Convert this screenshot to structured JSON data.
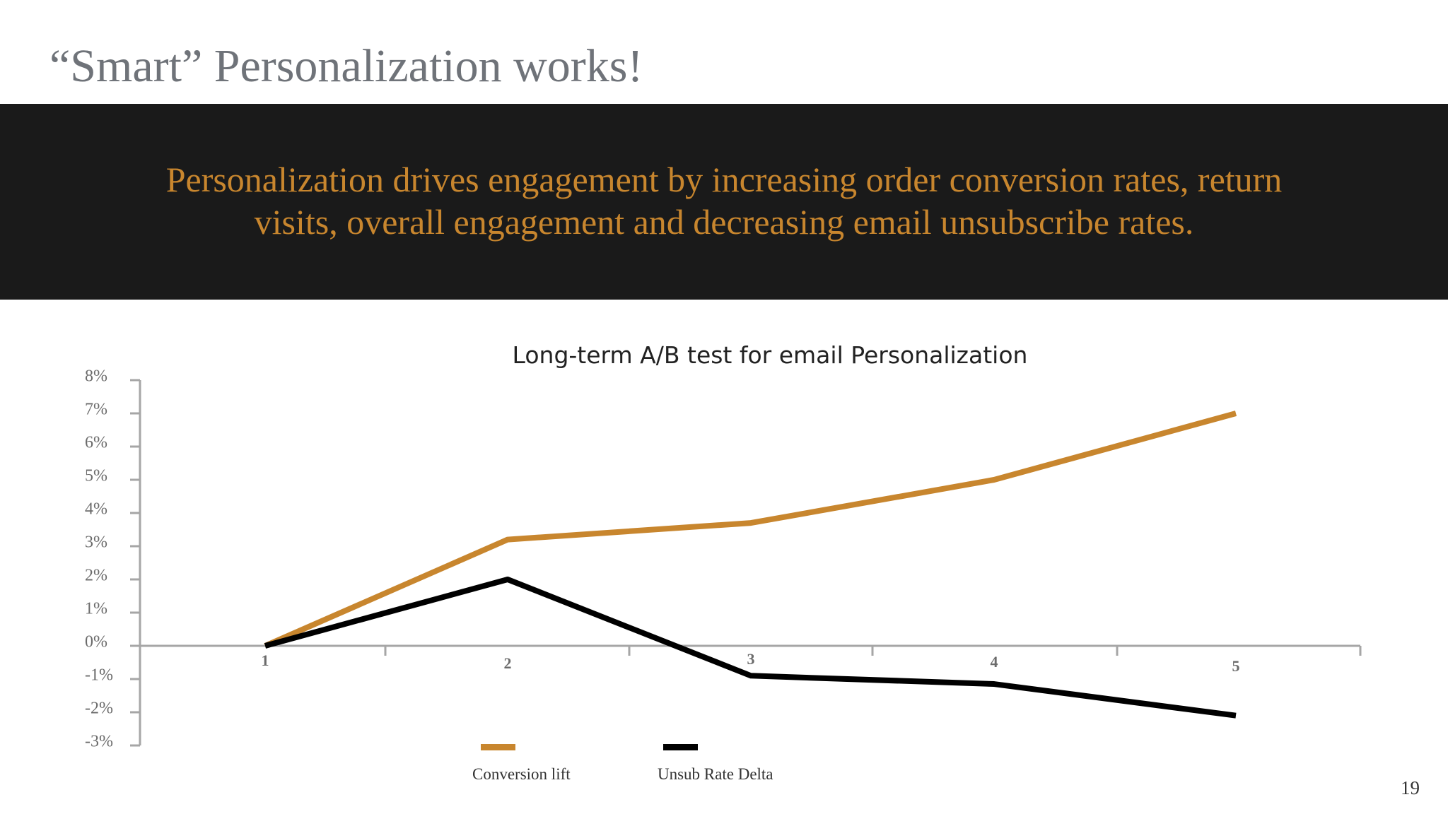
{
  "slide": {
    "title": "“Smart” Personalization works!",
    "banner_line1": "Personalization drives engagement by increasing order conversion rates, return",
    "banner_line2": "visits, overall engagement and decreasing email unsubscribe rates.",
    "page_number": "19"
  },
  "colors": {
    "accent": "#c8862e",
    "dark": "#1a1a1a",
    "axis": "#a6a6a6"
  },
  "chart_data": {
    "type": "line",
    "title": "Long-term A/B test for email Personalization",
    "categories": [
      "1",
      "2",
      "3",
      "4",
      "5"
    ],
    "ylim": [
      -0.03,
      0.08
    ],
    "yticks": [
      "8%",
      "7%",
      "6%",
      "5%",
      "4%",
      "3%",
      "2%",
      "1%",
      "0%",
      "-1%",
      "-2%",
      "-3%"
    ],
    "grid": false,
    "legend": "bottom",
    "series": [
      {
        "name": "Conversion lift",
        "color": "#c8862e",
        "values": [
          0.0,
          0.032,
          0.037,
          0.05,
          0.07
        ]
      },
      {
        "name": "Unsub Rate Delta",
        "color": "#000000",
        "values": [
          0.0,
          0.02,
          -0.009,
          -0.0115,
          -0.021
        ]
      }
    ]
  }
}
